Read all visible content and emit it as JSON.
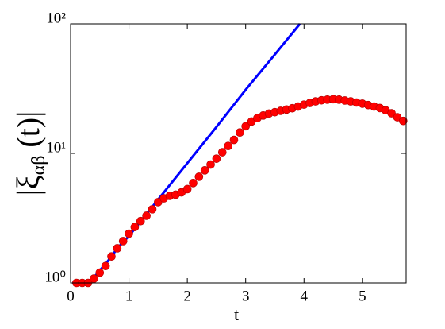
{
  "chart_data": {
    "type": "line",
    "xlabel": "t",
    "ylabel": {
      "symbol": "|ξ",
      "subscript": "αβ",
      "argument": " (t)|"
    },
    "yscale": "log",
    "xlim": [
      0,
      5.75
    ],
    "ylim": [
      1,
      100
    ],
    "xticks": [
      0,
      1,
      2,
      3,
      4,
      5
    ],
    "yticks": [
      {
        "value": 1,
        "label": "10⁰"
      },
      {
        "value": 10,
        "label": "10¹"
      },
      {
        "value": 100,
        "label": "10²"
      }
    ],
    "series": [
      {
        "style": "line",
        "color": "#0000ff",
        "x": [
          0.03,
          0.2,
          0.3,
          0.4,
          0.5,
          0.6,
          0.7,
          0.8,
          1.0,
          1.5,
          2.0,
          2.5,
          3.0,
          3.5,
          3.93
        ],
        "values": [
          1,
          1,
          1.03,
          1.1,
          1.25,
          1.4,
          1.6,
          1.85,
          2.3,
          4.4,
          8.4,
          16,
          31,
          58,
          100
        ]
      },
      {
        "style": "markers",
        "color": "#ff0000",
        "x": [
          0.1,
          0.2,
          0.3,
          0.4,
          0.5,
          0.6,
          0.7,
          0.8,
          0.9,
          1.0,
          1.1,
          1.2,
          1.3,
          1.4,
          1.5,
          1.6,
          1.7,
          1.8,
          1.9,
          2.0,
          2.1,
          2.2,
          2.3,
          2.4,
          2.5,
          2.6,
          2.7,
          2.8,
          2.9,
          3.0,
          3.1,
          3.2,
          3.3,
          3.4,
          3.5,
          3.6,
          3.7,
          3.8,
          3.9,
          4.0,
          4.1,
          4.2,
          4.3,
          4.4,
          4.5,
          4.6,
          4.7,
          4.8,
          4.9,
          5.0,
          5.1,
          5.2,
          5.3,
          5.4,
          5.5,
          5.6,
          5.7
        ],
        "values": [
          1.0,
          1.0,
          1.0,
          1.08,
          1.2,
          1.35,
          1.6,
          1.85,
          2.1,
          2.4,
          2.7,
          3.0,
          3.3,
          3.7,
          4.2,
          4.5,
          4.7,
          4.8,
          5.0,
          5.3,
          5.9,
          6.6,
          7.4,
          8.2,
          9.1,
          10.2,
          11.4,
          12.7,
          14.5,
          16.2,
          17.6,
          18.7,
          19.6,
          20.3,
          20.8,
          21.3,
          21.8,
          22.3,
          23.0,
          23.8,
          24.5,
          25.2,
          25.7,
          26.0,
          26.2,
          26.0,
          25.6,
          25.2,
          24.7,
          24.2,
          23.6,
          23.0,
          22.4,
          21.5,
          20.4,
          19.0,
          17.8
        ]
      }
    ]
  }
}
